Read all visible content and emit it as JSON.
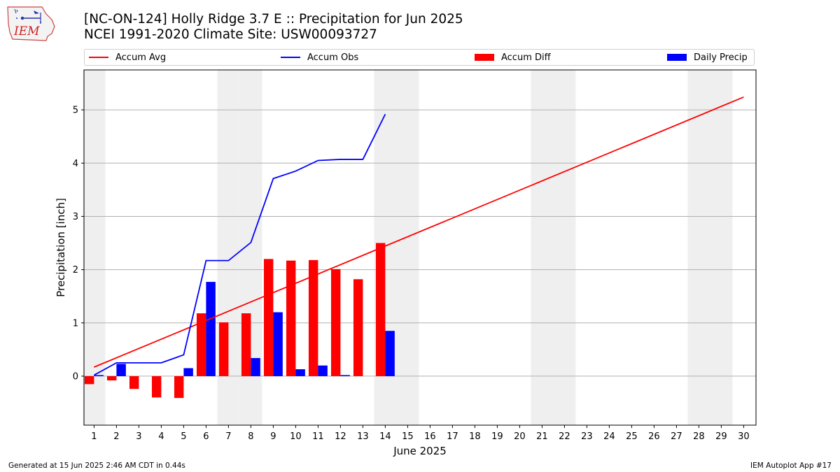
{
  "header": {
    "title_line1": "[NC-ON-124] Holly Ridge 3.7 E :: Precipitation for Jun 2025",
    "title_line2": "NCEI 1991-2020 Climate Site: USW00093727",
    "logo_text": "IEM"
  },
  "footer": {
    "generated": "Generated at 15 Jun 2025 2:46 AM CDT in 0.44s",
    "app": "IEM Autoplot App #17"
  },
  "legend": [
    {
      "label": "Accum Avg",
      "kind": "line",
      "color": "#ff0000"
    },
    {
      "label": "Accum Obs",
      "kind": "line",
      "color": "#0000ff"
    },
    {
      "label": "Accum Diff",
      "kind": "bar",
      "color": "#ff0000"
    },
    {
      "label": "Daily Precip",
      "kind": "bar",
      "color": "#0000ff"
    }
  ],
  "chart_data": {
    "type": "bar",
    "xlabel": "June 2025",
    "ylabel": "Precipitation [inch]",
    "x": [
      1,
      2,
      3,
      4,
      5,
      6,
      7,
      8,
      9,
      10,
      11,
      12,
      13,
      14,
      15,
      16,
      17,
      18,
      19,
      20,
      21,
      22,
      23,
      24,
      25,
      26,
      27,
      28,
      29,
      30
    ],
    "ylim": [
      -0.92,
      5.75
    ],
    "yticks": [
      0,
      1,
      2,
      3,
      4,
      5
    ],
    "grid": "horizontal",
    "legend_position": "top",
    "weekend_shading": [
      1,
      7,
      8,
      14,
      15,
      21,
      22,
      28,
      29
    ],
    "series": [
      {
        "name": "Accum Avg",
        "kind": "line",
        "color": "#ff0000",
        "x": [
          1,
          30
        ],
        "values": [
          0.17,
          5.24
        ]
      },
      {
        "name": "Accum Obs",
        "kind": "line",
        "color": "#0000ff",
        "x": [
          1,
          2,
          3,
          4,
          5,
          6,
          7,
          8,
          9,
          10,
          11,
          12,
          13,
          14
        ],
        "values": [
          0.02,
          0.25,
          0.25,
          0.25,
          0.4,
          2.17,
          2.17,
          2.51,
          3.71,
          3.85,
          4.05,
          4.07,
          4.07,
          4.92
        ]
      },
      {
        "name": "Accum Diff",
        "kind": "bar",
        "color": "#ff0000",
        "x": [
          1,
          2,
          3,
          4,
          5,
          6,
          7,
          8,
          9,
          10,
          11,
          12,
          13,
          14
        ],
        "values": [
          -0.15,
          -0.08,
          -0.24,
          -0.4,
          -0.41,
          1.18,
          1.01,
          1.18,
          2.2,
          2.17,
          2.18,
          2.01,
          1.82,
          2.5
        ]
      },
      {
        "name": "Daily Precip",
        "kind": "bar",
        "color": "#0000ff",
        "x": [
          1,
          2,
          3,
          4,
          5,
          6,
          7,
          8,
          9,
          10,
          11,
          12,
          13,
          14
        ],
        "values": [
          0.02,
          0.23,
          0.0,
          0.0,
          0.15,
          1.77,
          0.0,
          0.34,
          1.2,
          0.13,
          0.2,
          0.02,
          0.0,
          0.85
        ]
      }
    ]
  }
}
